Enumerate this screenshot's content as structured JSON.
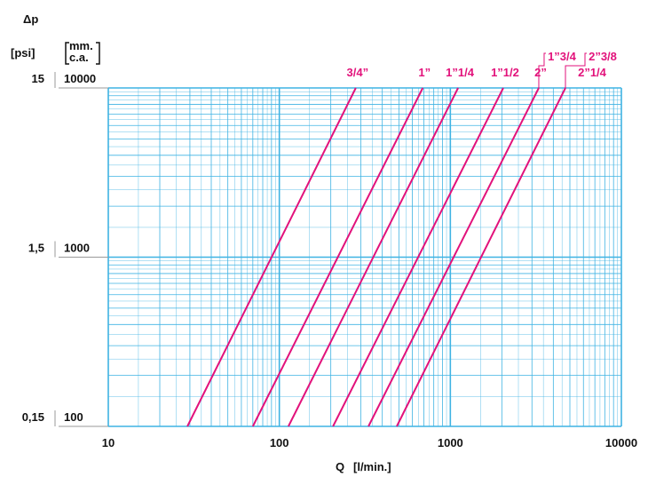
{
  "chart_data": {
    "type": "line",
    "y_label": "Δp",
    "y2_unit": "[psi]",
    "y_unit_lines": [
      "mm.",
      "c.a."
    ],
    "x_label": "Q",
    "x_unit": "[l/min.]",
    "xlim": [
      10,
      10000
    ],
    "ylim": [
      100,
      10000
    ],
    "xticks": [
      10,
      100,
      1000,
      10000
    ],
    "yticks": [
      100,
      1000,
      10000
    ],
    "y2lim": [
      0.15,
      15
    ],
    "y2ticks": [
      {
        "value": 0.15,
        "label": "0,15"
      },
      {
        "value": 1.5,
        "label": "1,5"
      },
      {
        "value": 15,
        "label": "15"
      }
    ],
    "log_x": true,
    "log_y": true,
    "grid": true,
    "grid_color": "#3fb3e3",
    "series": [
      {
        "name": "3/4”",
        "color": "#e2127b",
        "x": [
          29,
          280
        ],
        "values": [
          100,
          10000
        ]
      },
      {
        "name": "1”",
        "color": "#e2127b",
        "x": [
          70,
          690
        ],
        "values": [
          100,
          10000
        ]
      },
      {
        "name": "1”1/4",
        "color": "#e2127b",
        "x": [
          113,
          1110
        ],
        "values": [
          100,
          10000
        ]
      },
      {
        "name": "1”1/2",
        "color": "#e2127b",
        "x": [
          206,
          2040
        ],
        "values": [
          100,
          10000
        ]
      },
      {
        "name": "2”",
        "alt_name": "1”3/4",
        "color": "#e2127b",
        "x": [
          332,
          3290
        ],
        "values": [
          100,
          10000
        ]
      },
      {
        "name": "2”1/4",
        "alt_name": "2”3/8",
        "color": "#e2127b",
        "x": [
          486,
          4710
        ],
        "values": [
          100,
          10000
        ]
      }
    ]
  }
}
